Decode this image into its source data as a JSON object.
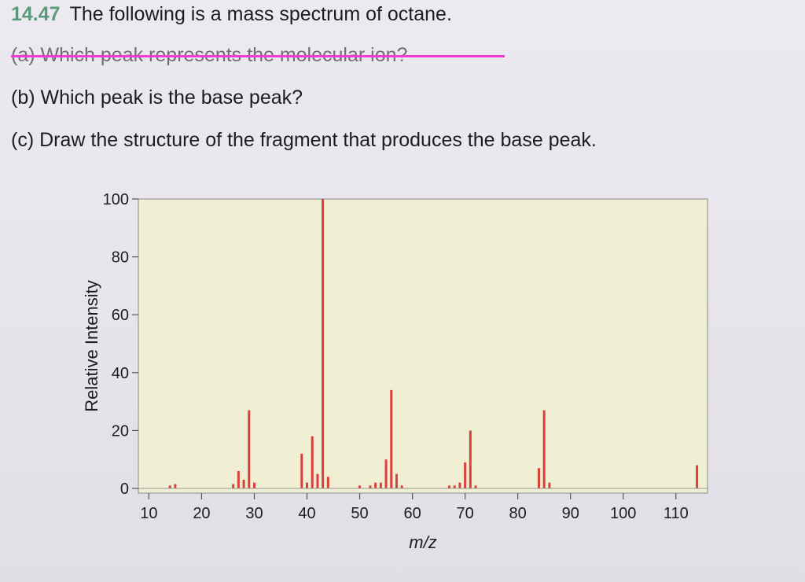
{
  "question": {
    "number": "14.47",
    "title": "The following is a mass spectrum of octane.",
    "part_a": "(a) Which peak represents the molecular ion?",
    "part_b": "(b) Which peak is the base peak?",
    "part_c": "(c) Draw the structure of the fragment that produces the base peak."
  },
  "colors": {
    "bar": "#d9413a",
    "plot_bg": "#f0efd4",
    "strike": "#f23bd2",
    "number": "#5a9a78"
  },
  "chart_data": {
    "type": "bar",
    "title": "",
    "xlabel": "m/z",
    "ylabel": "Relative Intensity",
    "xlim": [
      8,
      116
    ],
    "ylim": [
      0,
      100
    ],
    "xticks": [
      "10",
      "20",
      "30",
      "40",
      "50",
      "60",
      "70",
      "80",
      "90",
      "100",
      "110"
    ],
    "yticks": [
      "0",
      "20",
      "40",
      "60",
      "80",
      "100"
    ],
    "grid": false,
    "legend": "none",
    "peaks": [
      {
        "mz": 14,
        "value": 1
      },
      {
        "mz": 15,
        "value": 1.5
      },
      {
        "mz": 26,
        "value": 1.5
      },
      {
        "mz": 27,
        "value": 6
      },
      {
        "mz": 28,
        "value": 3
      },
      {
        "mz": 29,
        "value": 27
      },
      {
        "mz": 30,
        "value": 2
      },
      {
        "mz": 39,
        "value": 12
      },
      {
        "mz": 40,
        "value": 2
      },
      {
        "mz": 41,
        "value": 18
      },
      {
        "mz": 42,
        "value": 5
      },
      {
        "mz": 43,
        "value": 100
      },
      {
        "mz": 44,
        "value": 4
      },
      {
        "mz": 50,
        "value": 1
      },
      {
        "mz": 52,
        "value": 1
      },
      {
        "mz": 53,
        "value": 2
      },
      {
        "mz": 54,
        "value": 2
      },
      {
        "mz": 55,
        "value": 10
      },
      {
        "mz": 56,
        "value": 34
      },
      {
        "mz": 57,
        "value": 5
      },
      {
        "mz": 58,
        "value": 1
      },
      {
        "mz": 67,
        "value": 1
      },
      {
        "mz": 68,
        "value": 1
      },
      {
        "mz": 69,
        "value": 2
      },
      {
        "mz": 70,
        "value": 9
      },
      {
        "mz": 71,
        "value": 20
      },
      {
        "mz": 72,
        "value": 1
      },
      {
        "mz": 84,
        "value": 7
      },
      {
        "mz": 85,
        "value": 27
      },
      {
        "mz": 86,
        "value": 2
      },
      {
        "mz": 114,
        "value": 8
      }
    ]
  }
}
